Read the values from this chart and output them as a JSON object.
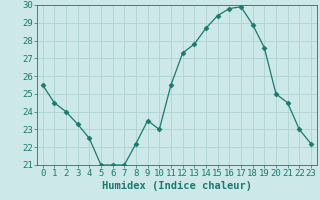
{
  "x": [
    0,
    1,
    2,
    3,
    4,
    5,
    6,
    7,
    8,
    9,
    10,
    11,
    12,
    13,
    14,
    15,
    16,
    17,
    18,
    19,
    20,
    21,
    22,
    23
  ],
  "y": [
    25.5,
    24.5,
    24.0,
    23.3,
    22.5,
    21.0,
    21.0,
    21.0,
    22.2,
    23.5,
    23.0,
    25.5,
    27.3,
    27.8,
    28.7,
    29.4,
    29.8,
    29.9,
    28.9,
    27.6,
    25.0,
    24.5,
    23.0,
    22.2
  ],
  "line_color": "#1a7a6e",
  "marker": "D",
  "marker_size": 2.5,
  "bg_color": "#cce8e8",
  "grid_color": "#aacece",
  "xlabel": "Humidex (Indice chaleur)",
  "ylim": [
    21,
    30
  ],
  "yticks": [
    21,
    22,
    23,
    24,
    25,
    26,
    27,
    28,
    29,
    30
  ],
  "xticks": [
    0,
    1,
    2,
    3,
    4,
    5,
    6,
    7,
    8,
    9,
    10,
    11,
    12,
    13,
    14,
    15,
    16,
    17,
    18,
    19,
    20,
    21,
    22,
    23
  ],
  "tick_label_color": "#1a7a6e",
  "axis_color": "#1a7a6e",
  "xlabel_fontsize": 7.5,
  "tick_fontsize": 6.5
}
